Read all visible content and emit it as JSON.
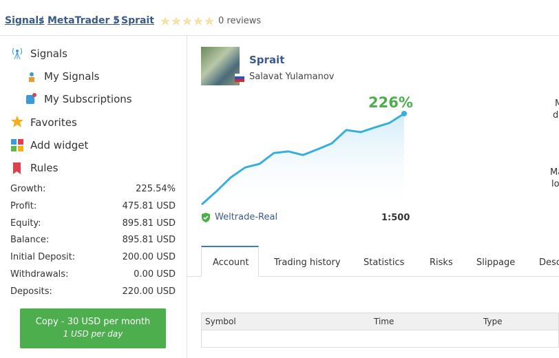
{
  "breadcrumb": {
    "items": [
      "Signals",
      "MetaTrader 5",
      "Sprait"
    ],
    "separator": "/"
  },
  "reviews": "0 reviews",
  "menu": [
    "Signals",
    "My Signals",
    "My Subscriptions",
    "Favorites",
    "Add widget",
    "Rules"
  ],
  "stats": [
    [
      "Growth:",
      "225.54%"
    ],
    [
      "Profit:",
      "475.81 USD"
    ],
    [
      "Equity:",
      "895.81 USD"
    ],
    [
      "Balance:",
      "895.81 USD"
    ],
    [
      "Initial Deposit:",
      "200.00 USD"
    ],
    [
      "Withdrawals:",
      "0.00 USD"
    ],
    [
      "Deposits:",
      "220.00 USD"
    ]
  ],
  "copy_button": {
    "label": "Copy - 30 USD per month",
    "sub": "1 USD per day"
  },
  "signal": {
    "name": "Sprait",
    "author": "Salavat Yulamanov",
    "growth_label": "226%",
    "broker": "Weltrade-Real",
    "leverage": "1:500"
  },
  "growth_chart": {
    "type": "line",
    "color": "#35b0dd",
    "values": [
      0,
      32,
      67,
      92,
      101,
      128,
      132,
      123,
      137,
      152,
      185,
      180,
      192,
      203,
      226
    ]
  },
  "tabs": [
    "Account",
    "Trading history",
    "Statistics",
    "Risks",
    "Slippage",
    "Desc"
  ],
  "table_header": [
    "Symbol",
    "Time",
    "Type"
  ],
  "cropped_text": [
    "M",
    "d",
    "Ma",
    "lo"
  ]
}
